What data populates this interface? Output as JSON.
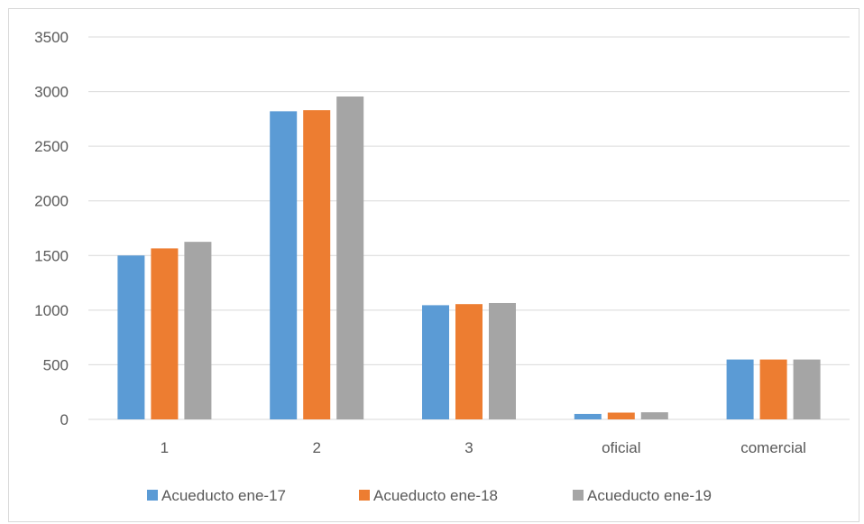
{
  "chart_data": {
    "type": "bar",
    "categories": [
      "1",
      "2",
      "3",
      "oficial",
      "comercial"
    ],
    "series": [
      {
        "name": "Acueducto ene-17",
        "color": "#5b9bd5",
        "values": [
          1500,
          2820,
          1045,
          50,
          548
        ]
      },
      {
        "name": "Acueducto ene-18",
        "color": "#ed7d31",
        "values": [
          1565,
          2830,
          1055,
          62,
          548
        ]
      },
      {
        "name": "Acueducto ene-19",
        "color": "#a5a5a5",
        "values": [
          1625,
          2955,
          1065,
          65,
          548
        ]
      }
    ],
    "ylim": [
      0,
      3500
    ],
    "yticks": [
      "0",
      "500",
      "1000",
      "1500",
      "2000",
      "2500",
      "3000",
      "3500"
    ],
    "grid": true,
    "legend_position": "bottom",
    "grid_color": "#d9d9d9"
  }
}
